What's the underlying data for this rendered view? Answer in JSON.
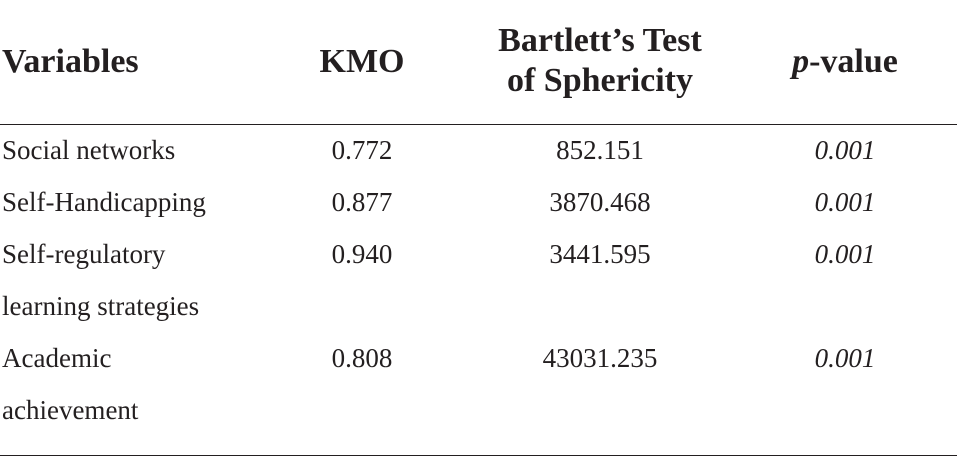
{
  "table": {
    "headers": {
      "variables": "Variables",
      "kmo": "KMO",
      "bartlett_line1": "Bartlett’s Test",
      "bartlett_line2": "of Sphericity",
      "p_italic": "p",
      "p_rest": "-value"
    },
    "rows": [
      {
        "variable_line1": "Social networks",
        "variable_line2": "",
        "kmo": "0.772",
        "bartlett": "852.151",
        "p": "0.001"
      },
      {
        "variable_line1": "Self-Handicapping",
        "variable_line2": "",
        "kmo": "0.877",
        "bartlett": "3870.468",
        "p": "0.001"
      },
      {
        "variable_line1": "Self-regulatory",
        "variable_line2": "learning strategies",
        "kmo": "0.940",
        "bartlett": "3441.595",
        "p": "0.001"
      },
      {
        "variable_line1": "Academic",
        "variable_line2": "achievement",
        "kmo": "0.808",
        "bartlett": "43031.235",
        "p": "0.001"
      }
    ]
  }
}
